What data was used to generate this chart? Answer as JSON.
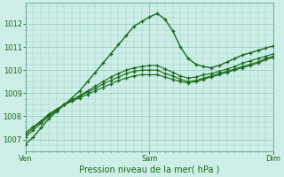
{
  "title": "Pression niveau de la mer( hPa )",
  "bg_color": "#ceeee8",
  "grid_color": "#9dd4cc",
  "line_color": "#1a6b1a",
  "ylim": [
    1006.5,
    1012.9
  ],
  "yticks": [
    1007,
    1008,
    1009,
    1010,
    1011,
    1012
  ],
  "xtick_pos": [
    0.0,
    0.5,
    1.0
  ],
  "xtick_labels": [
    "Ven",
    "Sam",
    "Dim"
  ],
  "series": [
    [
      1006.8,
      1007.1,
      1007.5,
      1007.9,
      1008.2,
      1008.5,
      1008.8,
      1009.1,
      1009.5,
      1009.9,
      1010.3,
      1010.7,
      1011.1,
      1011.5,
      1011.9,
      1012.1,
      1012.3,
      1012.45,
      1012.2,
      1011.7,
      1011.0,
      1010.5,
      1010.25,
      1010.15,
      1010.1,
      1010.2,
      1010.35,
      1010.5,
      1010.65,
      1010.75,
      1010.85,
      1010.95,
      1011.05
    ],
    [
      1007.1,
      1007.4,
      1007.7,
      1008.0,
      1008.25,
      1008.5,
      1008.7,
      1008.9,
      1009.1,
      1009.3,
      1009.5,
      1009.7,
      1009.85,
      1010.0,
      1010.1,
      1010.15,
      1010.2,
      1010.2,
      1010.05,
      1009.9,
      1009.75,
      1009.65,
      1009.7,
      1009.8,
      1009.85,
      1009.95,
      1010.05,
      1010.15,
      1010.3,
      1010.4,
      1010.5,
      1010.6,
      1010.7
    ],
    [
      1007.2,
      1007.5,
      1007.75,
      1008.05,
      1008.3,
      1008.5,
      1008.7,
      1008.85,
      1009.05,
      1009.2,
      1009.4,
      1009.55,
      1009.7,
      1009.85,
      1009.95,
      1010.0,
      1010.0,
      1010.0,
      1009.85,
      1009.75,
      1009.6,
      1009.5,
      1009.55,
      1009.65,
      1009.75,
      1009.85,
      1009.95,
      1010.05,
      1010.15,
      1010.25,
      1010.35,
      1010.5,
      1010.6
    ],
    [
      1007.3,
      1007.55,
      1007.8,
      1008.1,
      1008.3,
      1008.5,
      1008.65,
      1008.8,
      1008.95,
      1009.1,
      1009.25,
      1009.4,
      1009.55,
      1009.65,
      1009.75,
      1009.8,
      1009.8,
      1009.8,
      1009.7,
      1009.6,
      1009.5,
      1009.45,
      1009.5,
      1009.6,
      1009.7,
      1009.8,
      1009.9,
      1010.0,
      1010.1,
      1010.2,
      1010.3,
      1010.45,
      1010.55
    ]
  ]
}
